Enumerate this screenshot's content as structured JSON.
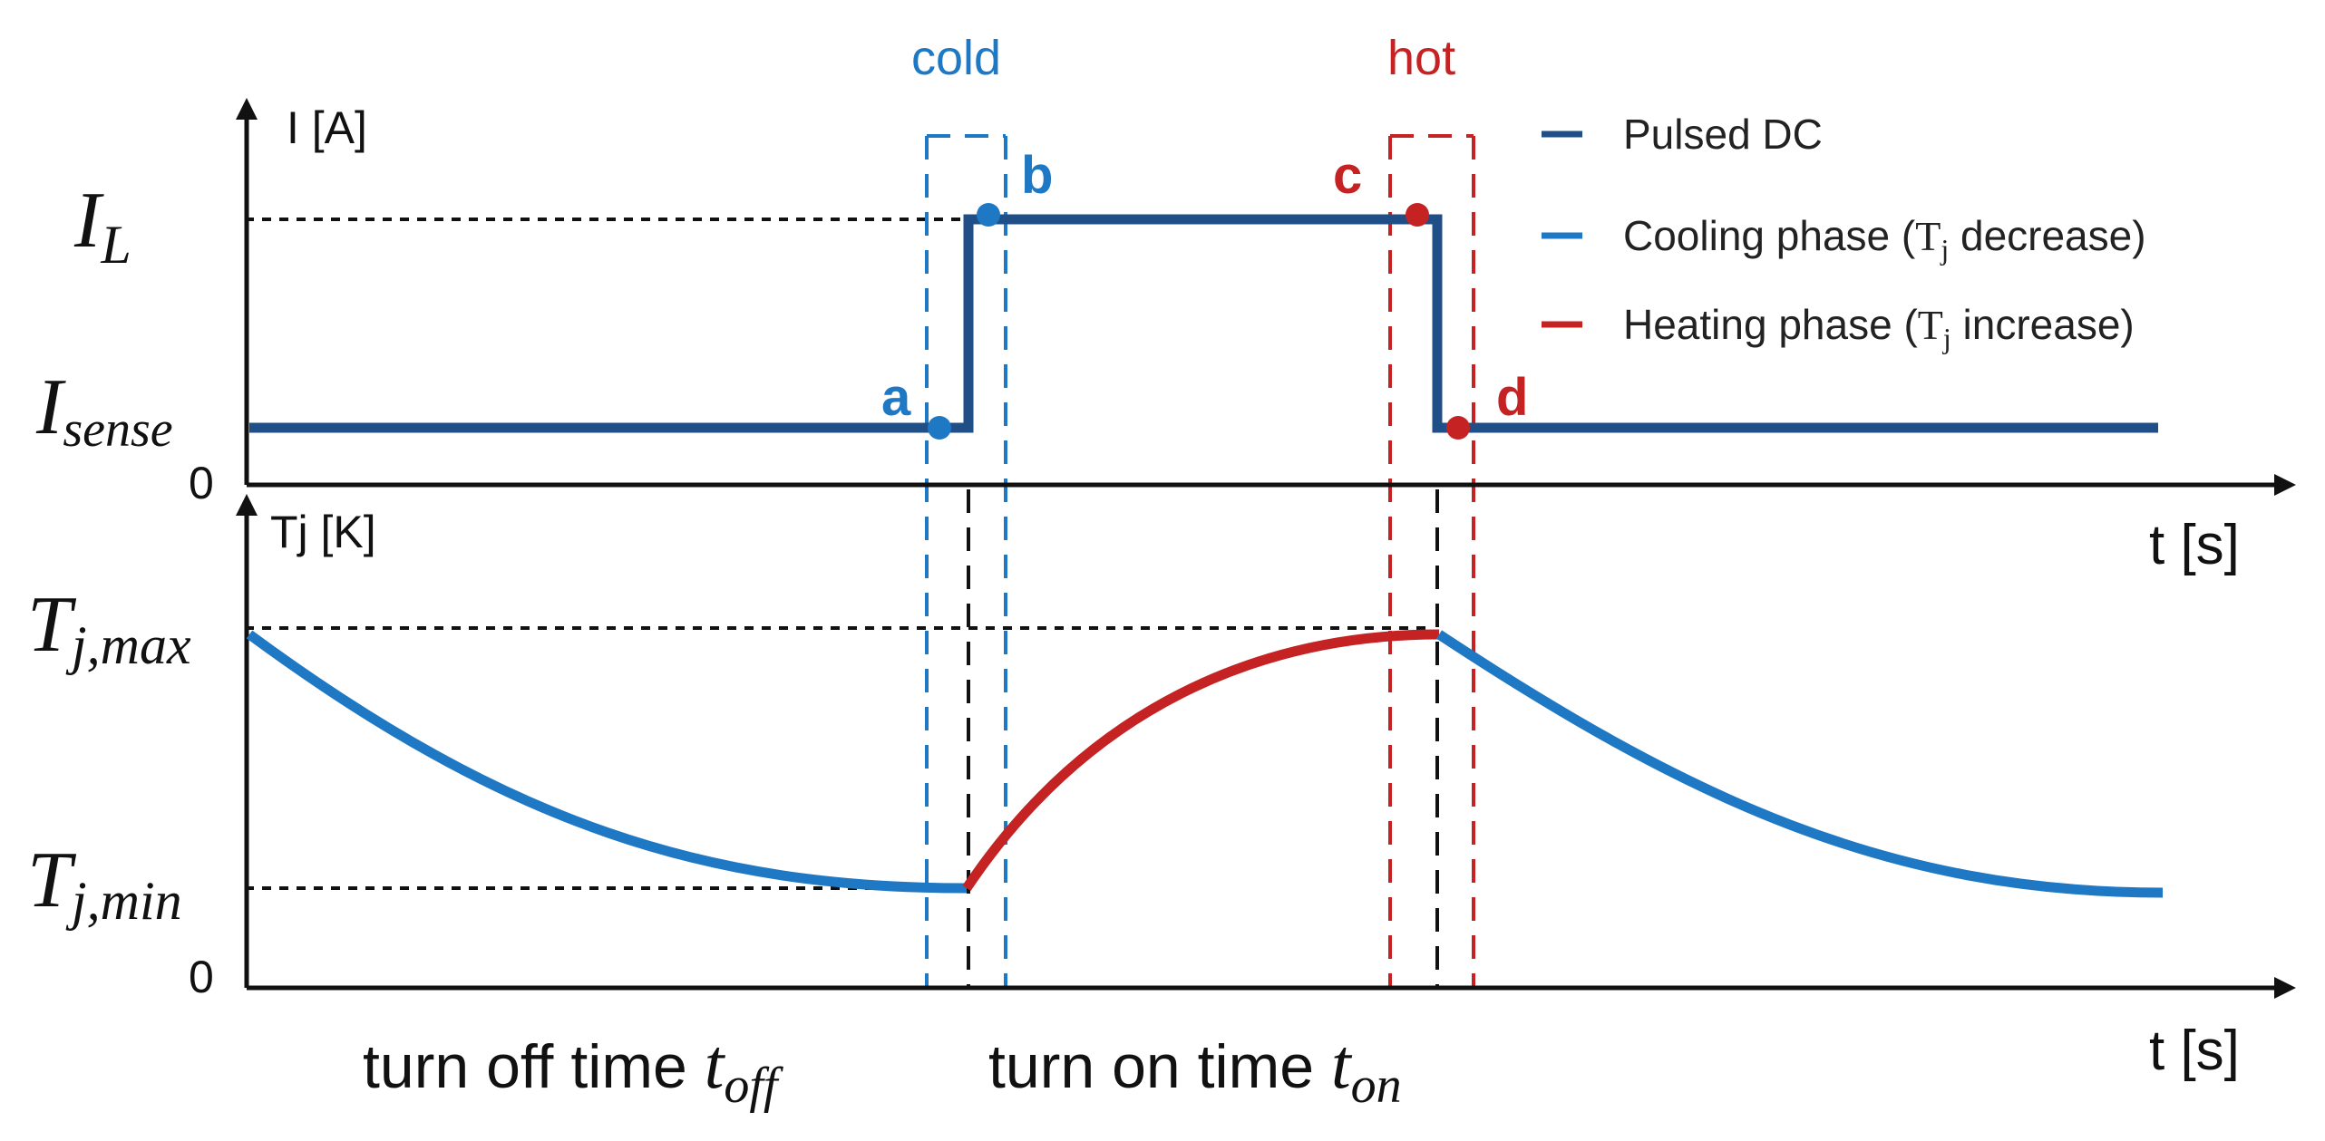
{
  "colors": {
    "pulsed_dc": "#1f4f86",
    "cooling": "#1f78c4",
    "heating": "#c42223",
    "black": "#111111"
  },
  "legend": {
    "pulsed": "Pulsed DC",
    "cooling_prefix": "Cooling phase (",
    "cooling_T": "T",
    "cooling_j": "j",
    "cooling_suffix": " decrease)",
    "heating_prefix": "Heating phase (",
    "heating_T": "T",
    "heating_j": "j",
    "heating_suffix": " increase)"
  },
  "top_plot": {
    "y_axis_label": "I [A]",
    "x_axis_label": "t [s]",
    "zero": "0",
    "level_high": {
      "main": "I",
      "sub": "L"
    },
    "level_low": {
      "main": "I",
      "sub": "sense"
    }
  },
  "bottom_plot": {
    "y_axis_label": "Tj [K]",
    "x_axis_label": "t [s]",
    "zero": "0",
    "level_high": {
      "main": "T",
      "sub": "j,max"
    },
    "level_low": {
      "main": "T",
      "sub": "j,min"
    }
  },
  "phases": {
    "cold": "cold",
    "hot": "hot"
  },
  "points": {
    "a": "a",
    "b": "b",
    "c": "c",
    "d": "d"
  },
  "time_labels": {
    "off_text": "turn off time ",
    "off_sym": "t",
    "off_sub": "off",
    "on_text": "turn on time ",
    "on_sym": "t",
    "on_sub": "on"
  }
}
